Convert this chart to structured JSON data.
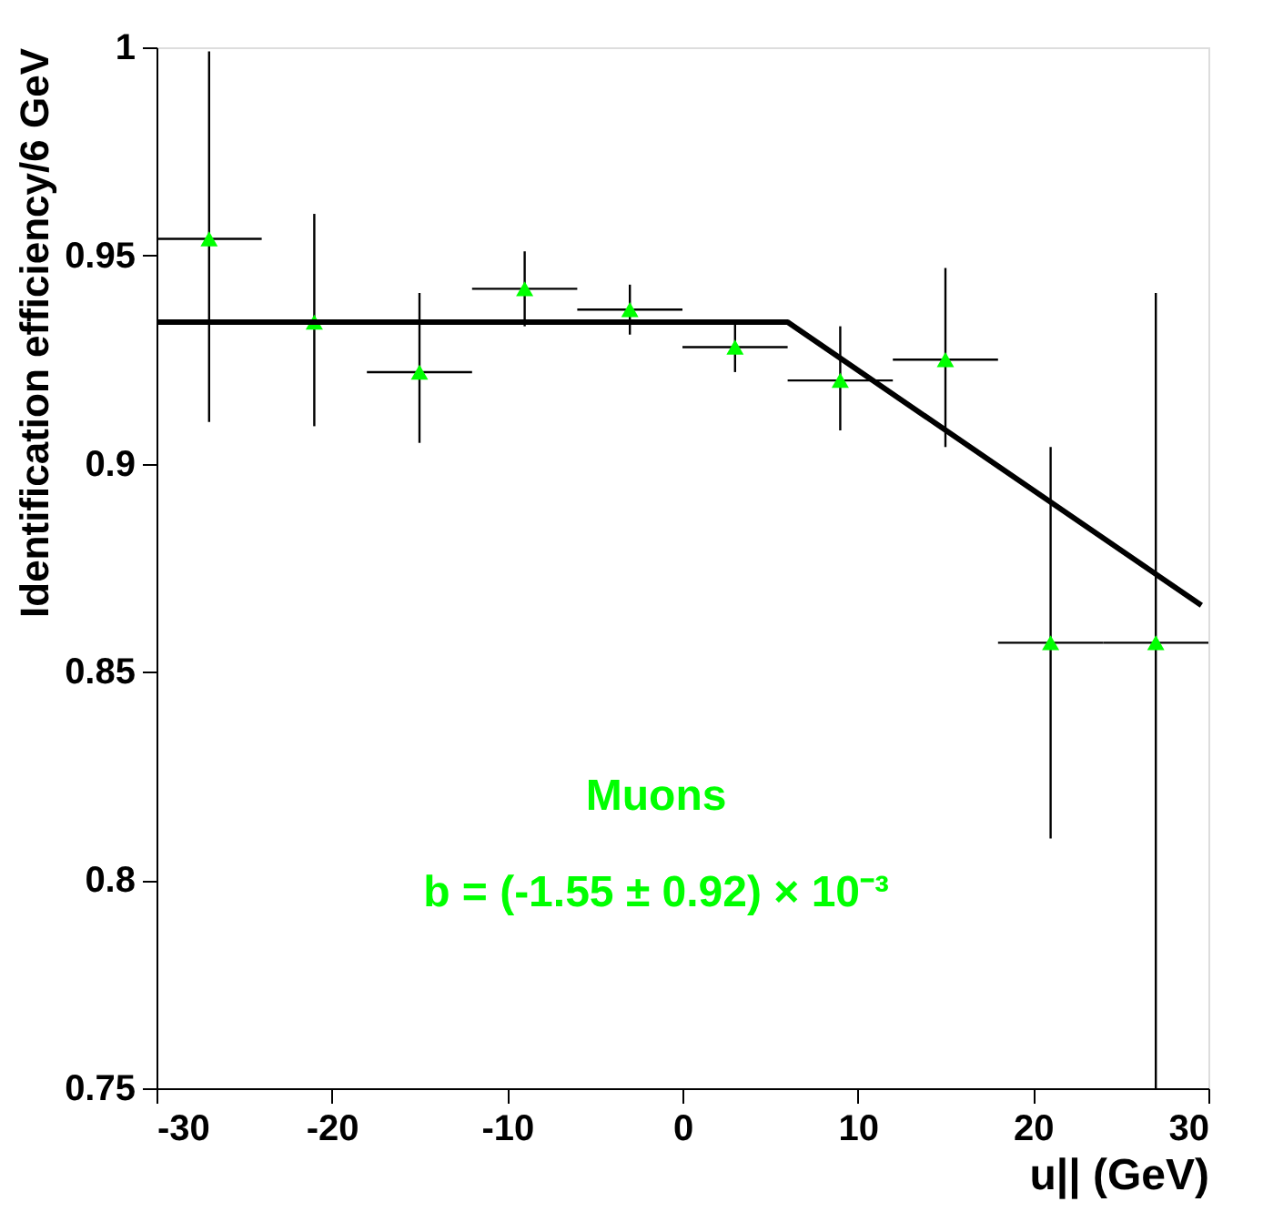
{
  "chart_data": {
    "type": "scatter",
    "xlabel": "u|| (GeV)",
    "ylabel": "Identification efficiency/6 GeV",
    "x": [
      -27,
      -21,
      -15,
      -9,
      -3,
      3,
      9,
      15,
      21,
      27
    ],
    "xlim": [
      -30,
      30
    ],
    "ylim": [
      0.75,
      1
    ],
    "xticks": [
      -30,
      -20,
      -10,
      0,
      10,
      20,
      30
    ],
    "yticks": [
      0.75,
      0.8,
      0.85,
      0.9,
      0.95,
      1
    ],
    "series": [
      {
        "color": "#00ff00",
        "marker": "triangle",
        "values": [
          0.954,
          0.934,
          0.922,
          0.942,
          0.937,
          0.928,
          0.92,
          0.925,
          0.857,
          0.857
        ],
        "errors": [
          [
            0.91,
            0.999
          ],
          [
            0.909,
            0.96
          ],
          [
            0.905,
            0.941
          ],
          [
            0.933,
            0.951
          ],
          [
            0.931,
            0.943
          ],
          [
            0.922,
            0.934
          ],
          [
            0.908,
            0.933
          ],
          [
            0.904,
            0.947
          ],
          [
            0.81,
            0.904
          ],
          [
            0.75,
            0.941
          ]
        ],
        "xerrors": [
          3,
          3,
          3,
          3,
          3,
          3,
          3,
          3,
          3,
          3
        ]
      },
      {
        "type": "line",
        "color": "#000000",
        "x": [
          -30,
          6,
          29.6
        ],
        "values": [
          0.934,
          0.934,
          0.866
        ]
      }
    ],
    "annotations": [
      "Muons",
      "b = (-1.55 ± 0.92) × 10⁻³"
    ],
    "grid": false
  }
}
